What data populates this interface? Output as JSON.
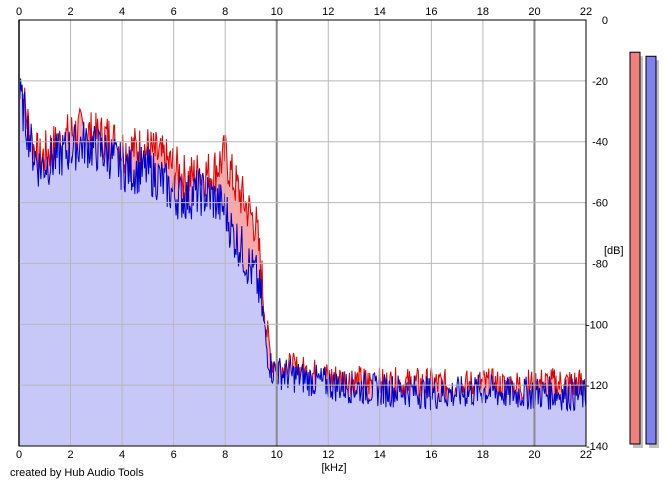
{
  "credit": "created by Hub Audio Tools",
  "chart_data": {
    "type": "area",
    "xlabel": "[kHz]",
    "ylabel": "[dB]",
    "xlim": [
      0,
      22
    ],
    "ylim": [
      -140,
      0
    ],
    "xticks": [
      "0",
      "2",
      "4",
      "6",
      "8",
      "10",
      "12",
      "14",
      "16",
      "18",
      "20",
      "22"
    ],
    "yticks": [
      "0",
      "-20",
      "-40",
      "-60",
      "-80",
      "-100",
      "-120",
      "-140"
    ],
    "grid": true,
    "series": [
      {
        "color": "#e00000",
        "fill": "#f7a8a8",
        "x": [
          0,
          0.2,
          0.5,
          0.8,
          1.2,
          1.6,
          2.0,
          2.5,
          3.0,
          3.5,
          4.0,
          4.5,
          5.0,
          5.5,
          6.0,
          6.5,
          7.0,
          7.5,
          8.0,
          8.3,
          8.6,
          8.9,
          9.2,
          9.4,
          9.6,
          9.8,
          10.0,
          11,
          12,
          13,
          14,
          15,
          16,
          17,
          18,
          19,
          20,
          21,
          22
        ],
        "values": [
          -20,
          -25,
          -38,
          -44,
          -40,
          -38,
          -35,
          -34,
          -36,
          -36,
          -40,
          -40,
          -40,
          -43,
          -46,
          -50,
          -48,
          -48,
          -42,
          -50,
          -55,
          -60,
          -65,
          -80,
          -100,
          -110,
          -112,
          -114,
          -116,
          -117,
          -118,
          -118,
          -118,
          -119,
          -118,
          -119,
          -118,
          -118,
          -118
        ]
      },
      {
        "color": "#0000cc",
        "fill": "#c8c8f8",
        "x": [
          0,
          0.2,
          0.5,
          0.8,
          1.2,
          1.6,
          2.0,
          2.5,
          3.0,
          3.5,
          4.0,
          4.5,
          5.0,
          5.5,
          6.0,
          6.5,
          7.0,
          7.5,
          8.0,
          8.3,
          8.6,
          8.9,
          9.2,
          9.4,
          9.6,
          9.8,
          10.0,
          11,
          12,
          13,
          14,
          15,
          16,
          17,
          18,
          19,
          20,
          21,
          22
        ],
        "values": [
          -22,
          -28,
          -40,
          -46,
          -44,
          -42,
          -40,
          -38,
          -40,
          -42,
          -46,
          -47,
          -47,
          -50,
          -55,
          -56,
          -54,
          -56,
          -60,
          -68,
          -72,
          -78,
          -82,
          -90,
          -106,
          -113,
          -114,
          -116,
          -118,
          -119,
          -120,
          -120,
          -121,
          -121,
          -120,
          -121,
          -121,
          -121,
          -122
        ]
      }
    ],
    "meters": [
      {
        "color": "#f08080",
        "level": 0.965
      },
      {
        "color": "#8080f0",
        "level": 0.955
      }
    ]
  }
}
